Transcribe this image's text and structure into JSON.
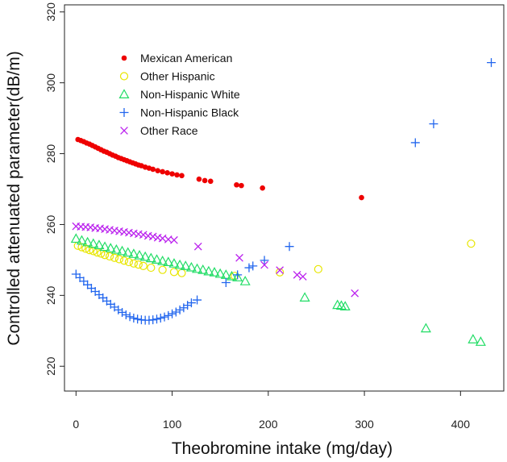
{
  "chart_data": {
    "type": "scatter",
    "title": "",
    "xlabel": "Theobromine intake (mg/day)",
    "ylabel": "Controlled attenuated parameter(dB/m)",
    "xlim": [
      -12,
      445
    ],
    "ylim": [
      213,
      322
    ],
    "xticks": [
      0,
      100,
      200,
      300,
      400
    ],
    "yticks": [
      220,
      240,
      260,
      280,
      300,
      320
    ],
    "grid": false,
    "legend_position": "top-left",
    "series": [
      {
        "name": "Mexican American",
        "marker": "filled-circle",
        "color": "#ee0000",
        "x": [
          2,
          5,
          8,
          11,
          14,
          17,
          20,
          23,
          26,
          29,
          32,
          35,
          38,
          41,
          44,
          47,
          50,
          53,
          56,
          59,
          62,
          65,
          68,
          72,
          76,
          80,
          85,
          90,
          95,
          100,
          105,
          110,
          128,
          134,
          140,
          167,
          172,
          194,
          297
        ],
        "y": [
          284.0,
          283.7,
          283.4,
          283.0,
          282.7,
          282.3,
          281.9,
          281.5,
          281.1,
          280.7,
          280.4,
          280.0,
          279.6,
          279.3,
          278.9,
          278.6,
          278.3,
          278.0,
          277.7,
          277.4,
          277.1,
          276.8,
          276.6,
          276.2,
          275.9,
          275.6,
          275.2,
          274.9,
          274.6,
          274.3,
          274.0,
          273.8,
          272.8,
          272.4,
          272.2,
          271.2,
          271.0,
          270.3,
          267.6
        ]
      },
      {
        "name": "Other Hispanic",
        "marker": "open-circle",
        "color": "#e8e600",
        "x": [
          2,
          6,
          10,
          14,
          18,
          22,
          26,
          30,
          35,
          40,
          45,
          50,
          55,
          60,
          65,
          70,
          78,
          90,
          102,
          110,
          165,
          212,
          252,
          411
        ],
        "y": [
          254.0,
          253.6,
          253.2,
          252.8,
          252.5,
          252.1,
          251.8,
          251.4,
          251.0,
          250.6,
          250.2,
          249.8,
          249.4,
          249.0,
          248.7,
          248.3,
          247.8,
          247.2,
          246.6,
          246.3,
          245.5,
          246.5,
          247.4,
          254.6
        ]
      },
      {
        "name": "Non-Hispanic White",
        "marker": "open-triangle",
        "color": "#22dd66",
        "x": [
          0,
          6,
          12,
          18,
          24,
          30,
          36,
          42,
          48,
          54,
          60,
          66,
          72,
          78,
          84,
          90,
          96,
          102,
          108,
          114,
          120,
          126,
          132,
          138,
          144,
          150,
          156,
          162,
          168,
          176,
          238,
          272,
          276,
          280,
          364,
          413,
          421
        ],
        "y": [
          256.0,
          255.5,
          255.0,
          254.6,
          254.2,
          253.7,
          253.3,
          252.9,
          252.5,
          252.1,
          251.7,
          251.3,
          250.9,
          250.5,
          250.1,
          249.7,
          249.4,
          249.0,
          248.6,
          248.3,
          247.9,
          247.5,
          247.2,
          246.8,
          246.5,
          246.1,
          245.8,
          245.4,
          245.1,
          244.0,
          239.4,
          237.3,
          237.1,
          236.9,
          230.7,
          227.6,
          226.9
        ]
      },
      {
        "name": "Non-Hispanic Black",
        "marker": "plus",
        "color": "#2266ee",
        "x": [
          0,
          4,
          8,
          12,
          16,
          20,
          24,
          28,
          32,
          36,
          40,
          44,
          48,
          52,
          56,
          60,
          64,
          68,
          72,
          76,
          80,
          84,
          88,
          92,
          96,
          100,
          104,
          108,
          112,
          116,
          120,
          126,
          156,
          168,
          180,
          184,
          196,
          222,
          353,
          372,
          432
        ],
        "y": [
          246.0,
          245.0,
          244.0,
          243.0,
          242.0,
          241.1,
          240.2,
          239.3,
          238.4,
          237.5,
          236.7,
          235.9,
          235.2,
          234.5,
          234.0,
          233.6,
          233.3,
          233.1,
          233.0,
          233.0,
          233.1,
          233.3,
          233.6,
          233.9,
          234.3,
          234.8,
          235.3,
          235.9,
          236.5,
          237.2,
          237.9,
          238.7,
          243.6,
          245.8,
          247.8,
          248.3,
          249.9,
          253.8,
          283.1,
          288.4,
          305.7
        ]
      },
      {
        "name": "Other Race",
        "marker": "cross",
        "color": "#bb22ee",
        "x": [
          0,
          5,
          10,
          15,
          20,
          25,
          30,
          35,
          40,
          45,
          50,
          55,
          60,
          65,
          70,
          75,
          80,
          85,
          90,
          96,
          102,
          127,
          170,
          196,
          212,
          230,
          236,
          290
        ],
        "y": [
          259.5,
          259.4,
          259.3,
          259.2,
          259.0,
          258.9,
          258.7,
          258.5,
          258.3,
          258.1,
          257.9,
          257.7,
          257.5,
          257.3,
          257.1,
          256.8,
          256.6,
          256.3,
          256.1,
          255.8,
          255.6,
          253.8,
          250.6,
          248.6,
          247.1,
          245.8,
          245.3,
          240.6
        ]
      }
    ]
  }
}
